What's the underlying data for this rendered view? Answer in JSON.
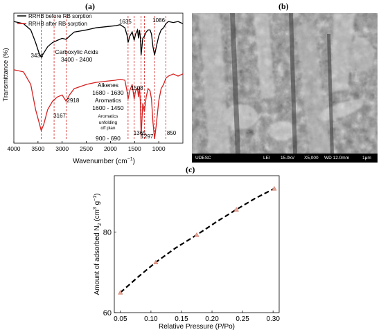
{
  "panels": {
    "a": "(a)",
    "b": "(b)",
    "c": "(c)"
  },
  "chart_data": [
    {
      "type": "line",
      "ylabel": "Transmittance (%)",
      "xlabel_main": "Wavenumber (cm",
      "xlabel_sup": "−1",
      "xlabel_close": ")",
      "xlim": [
        4000,
        500
      ],
      "x_ticks": [
        4000,
        3500,
        3000,
        2500,
        2000,
        1500,
        1000
      ],
      "legend": [
        {
          "name": "RRHB before RB sorption",
          "color": "#000000"
        },
        {
          "name": "RRHB after RB sorption",
          "color": "#d62020"
        }
      ],
      "annotations": [
        {
          "text": "Carboxylic Acids",
          "x": 2700
        },
        {
          "text": "3400 - 2400",
          "x": 2700
        },
        {
          "text": "Alkenes",
          "x": 2050
        },
        {
          "text": "1680 - 1630",
          "x": 2050
        },
        {
          "text": "Aromatics",
          "x": 2050
        },
        {
          "text": "1600 - 1450",
          "x": 2050
        },
        {
          "text": "Aromatics",
          "x": 2050
        },
        {
          "text": "unfolding",
          "x": 2050
        },
        {
          "text": "off plan",
          "x": 2050
        },
        {
          "text": "900 - 690",
          "x": 2050
        }
      ],
      "peak_labels": [
        {
          "text": "3434",
          "x": 3434
        },
        {
          "text": "3167",
          "x": 3167
        },
        {
          "text": "2918",
          "x": 2918
        },
        {
          "text": "1635",
          "x": 1635
        },
        {
          "text": "1508",
          "x": 1508
        },
        {
          "text": "1365",
          "x": 1365
        },
        {
          "text": "1297",
          "x": 1297
        },
        {
          "text": "1086",
          "x": 1086
        },
        {
          "text": "850",
          "x": 850
        }
      ],
      "dashed_lines": [
        3434,
        3167,
        2918,
        1635,
        1508,
        1365,
        1297,
        1086,
        850
      ],
      "series": [
        {
          "name": "RRHB before RB sorption",
          "color": "#000000",
          "x": [
            4000,
            3800,
            3650,
            3550,
            3480,
            3434,
            3380,
            3300,
            3200,
            3100,
            3000,
            2918,
            2850,
            2750,
            2500,
            2300,
            2100,
            1900,
            1800,
            1700,
            1650,
            1635,
            1600,
            1550,
            1508,
            1480,
            1440,
            1420,
            1400,
            1380,
            1365,
            1330,
            1297,
            1260,
            1220,
            1180,
            1150,
            1120,
            1086,
            1050,
            1000,
            950,
            900,
            850,
            800,
            700,
            600,
            500
          ],
          "y": [
            96,
            95,
            92,
            86,
            81,
            79,
            81,
            84,
            86,
            87,
            88,
            87.5,
            89,
            91,
            92,
            93,
            93.5,
            94,
            94.5,
            93,
            89,
            86,
            89,
            91,
            87,
            90,
            92,
            88,
            92,
            88,
            80,
            88,
            89,
            91,
            92,
            92,
            90,
            84,
            80,
            84,
            89,
            92,
            93,
            95,
            96,
            95.5,
            96,
            95
          ]
        },
        {
          "name": "RRHB after RB sorption",
          "color": "#d62020",
          "x": [
            4000,
            3800,
            3650,
            3550,
            3480,
            3434,
            3380,
            3300,
            3200,
            3100,
            3000,
            2918,
            2850,
            2750,
            2500,
            2300,
            2100,
            1900,
            1800,
            1700,
            1650,
            1635,
            1600,
            1550,
            1508,
            1480,
            1440,
            1420,
            1400,
            1380,
            1365,
            1330,
            1297,
            1260,
            1220,
            1180,
            1150,
            1120,
            1086,
            1050,
            1000,
            950,
            900,
            850,
            800,
            700,
            600,
            500
          ],
          "y": [
            73,
            72,
            66,
            54,
            48,
            44,
            47,
            54,
            58,
            60,
            61,
            58,
            61,
            64,
            66,
            67,
            67.5,
            68,
            68.5,
            68,
            62,
            59,
            63,
            66,
            59,
            63,
            64,
            60,
            65,
            57,
            41,
            57,
            53,
            60,
            64,
            63,
            59,
            48,
            40,
            47,
            58,
            64,
            66,
            69,
            70,
            71,
            70,
            71
          ]
        }
      ]
    },
    {
      "type": "scatter",
      "xlabel": "Relative Pressure (P/Po)",
      "ylabel_main": "Amount of adsorbed N",
      "ylabel_sub": "2",
      "ylabel_unit_open": " (cm",
      "ylabel_unit_sup": "3",
      "ylabel_unit_mid": " g",
      "ylabel_unit_sup2": "−1",
      "ylabel_unit_close": ")",
      "xlim": [
        0.04,
        0.31
      ],
      "ylim": [
        60,
        94
      ],
      "x_ticks": [
        0.05,
        0.1,
        0.15,
        0.2,
        0.25,
        0.3
      ],
      "x_tick_labels": [
        "0.05",
        "0.10",
        "0.15",
        "0.20",
        "0.25",
        "0.30"
      ],
      "y_ticks": [
        60,
        80
      ],
      "y_tick_labels": [
        "60",
        "80"
      ],
      "marker_color": "#e8a090",
      "fit_color": "#000000",
      "points": {
        "x": [
          0.05,
          0.108,
          0.175,
          0.24,
          0.302
        ],
        "y": [
          65,
          72.5,
          79.3,
          85.6,
          90.8
        ]
      },
      "fit": {
        "x": [
          0.05,
          0.08,
          0.108,
          0.14,
          0.175,
          0.21,
          0.24,
          0.27,
          0.302
        ],
        "y": [
          65,
          69,
          72.5,
          76,
          79.3,
          82.8,
          85.6,
          88.3,
          90.8
        ]
      }
    }
  ],
  "sem": {
    "bar_items": [
      "UDESC",
      "LEI",
      "15.0kV",
      "X5,000",
      "WD 12.0mm",
      "1μm"
    ]
  }
}
